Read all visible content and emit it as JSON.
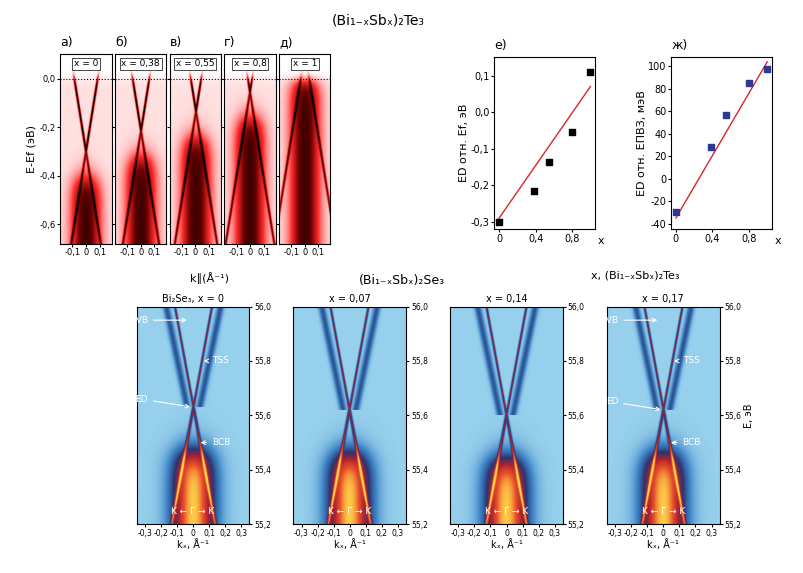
{
  "figure": {
    "title_top": "(Bi₁₋ₓSbₓ)₂Te₃",
    "title_bottom": "(Bi₁₋ₓSbₓ)₂Se₃",
    "top_xlabel": "k∥(Å⁻¹)",
    "top_ylabel": "E-Ef (эВ)",
    "scatter_xlabel": "x, (Bi₁₋ₓSbₓ)₂Te₃",
    "bottom_ylabel": "E, эВ"
  },
  "chart_data": [
    {
      "type": "image",
      "panel": "а)",
      "title": "x = 0",
      "dirac_point": -0.3,
      "fermi_level": 0,
      "xlim": [
        -0.19,
        0.19
      ],
      "xticks": [
        {
          "value": -0.1,
          "label": "-0,1"
        },
        0,
        {
          "value": 0.1,
          "label": "0,1"
        }
      ],
      "ylim": [
        -0.68,
        0.1
      ],
      "yticks": [
        {
          "value": 0,
          "label": "0,0"
        },
        {
          "value": -0.2,
          "label": "-0,2"
        },
        {
          "value": -0.4,
          "label": "-0,4"
        },
        {
          "value": -0.6,
          "label": "-0,6"
        }
      ]
    },
    {
      "type": "image",
      "panel": "б)",
      "title": "x = 0,38",
      "dirac_point": -0.215,
      "fermi_level": 0,
      "tick_labels": "x",
      "xlim": [
        -0.19,
        0.19
      ],
      "xticks": [
        {
          "value": -0.1,
          "label": "-0,1"
        },
        0,
        {
          "value": 0.1,
          "label": "0,1"
        }
      ],
      "ylim": [
        -0.68,
        0.1
      ],
      "yticks": [
        {
          "value": 0,
          "label": "0,0"
        },
        {
          "value": -0.2,
          "label": "-0,2"
        },
        {
          "value": -0.4,
          "label": "-0,4"
        },
        {
          "value": -0.6,
          "label": "-0,6"
        }
      ]
    },
    {
      "type": "image",
      "panel": "в)",
      "title": "x = 0,55",
      "dirac_point": -0.135,
      "fermi_level": 0,
      "tick_labels": "x",
      "xlim": [
        -0.19,
        0.19
      ],
      "xticks": [
        {
          "value": -0.1,
          "label": "-0,1"
        },
        0,
        {
          "value": 0.1,
          "label": "0,1"
        }
      ],
      "ylim": [
        -0.68,
        0.1
      ],
      "yticks": [
        {
          "value": 0,
          "label": "0,0"
        },
        {
          "value": -0.2,
          "label": "-0,2"
        },
        {
          "value": -0.4,
          "label": "-0,4"
        },
        {
          "value": -0.6,
          "label": "-0,6"
        }
      ]
    },
    {
      "type": "image",
      "panel": "г)",
      "title": "x = 0,8",
      "dirac_point": -0.055,
      "fermi_level": 0,
      "tick_labels": "x",
      "xlim": [
        -0.19,
        0.19
      ],
      "xticks": [
        {
          "value": -0.1,
          "label": "-0,1"
        },
        0,
        {
          "value": 0.1,
          "label": "0,1"
        }
      ],
      "ylim": [
        -0.68,
        0.1
      ],
      "yticks": [
        {
          "value": 0,
          "label": "0,0"
        },
        {
          "value": -0.2,
          "label": "-0,2"
        },
        {
          "value": -0.4,
          "label": "-0,4"
        },
        {
          "value": -0.6,
          "label": "-0,6"
        }
      ]
    },
    {
      "type": "image",
      "panel": "д)",
      "title": "x = 1",
      "dirac_point": 0.11,
      "fermi_level": 0,
      "tick_labels": "x",
      "xlim": [
        -0.19,
        0.19
      ],
      "xticks": [
        {
          "value": -0.1,
          "label": "-0,1"
        },
        0,
        {
          "value": 0.1,
          "label": "0,1"
        }
      ],
      "ylim": [
        -0.68,
        0.1
      ],
      "yticks": [
        {
          "value": 0,
          "label": "0,0"
        },
        {
          "value": -0.2,
          "label": "-0,2"
        },
        {
          "value": -0.4,
          "label": "-0,4"
        },
        {
          "value": -0.6,
          "label": "-0,6"
        }
      ]
    },
    {
      "type": "scatter",
      "panel": "е)",
      "x": [
        0,
        0.38,
        0.55,
        0.8,
        1
      ],
      "values": [
        -0.3,
        -0.215,
        -0.135,
        -0.055,
        0.11
      ],
      "color": "#000000",
      "marker": "square",
      "fit": {
        "x": [
          0,
          1
        ],
        "values": [
          -0.29,
          0.07
        ],
        "color": "#d62728"
      },
      "xlim": [
        -0.05,
        1.05
      ],
      "xticks": [
        0,
        {
          "value": 0.4,
          "label": "0,4"
        },
        {
          "value": 0.8,
          "label": "0,8"
        }
      ],
      "ylim": [
        -0.32,
        0.15
      ],
      "yticks": [
        {
          "value": -0.3,
          "label": "-0,3"
        },
        {
          "value": -0.2,
          "label": "-0,2"
        },
        {
          "value": -0.1,
          "label": "-0,1"
        },
        {
          "value": 0,
          "label": "0,0"
        },
        {
          "value": 0.1,
          "label": "0,1"
        }
      ],
      "ylabel": "ED отн. Ef, эВ",
      "x_end_label": "x"
    },
    {
      "type": "scatter",
      "panel": "ж)",
      "x": [
        0,
        0.38,
        0.55,
        0.8,
        1
      ],
      "values": [
        -30,
        28,
        57,
        85,
        98
      ],
      "color": "#2b3a8f",
      "marker": "square",
      "fit": {
        "x": [
          0,
          1
        ],
        "values": [
          -35,
          104
        ],
        "color": "#d62728"
      },
      "xlim": [
        -0.05,
        1.05
      ],
      "xticks": [
        0,
        {
          "value": 0.4,
          "label": "0,4"
        },
        {
          "value": 0.8,
          "label": "0,8"
        }
      ],
      "ylim": [
        -45,
        108
      ],
      "yticks": [
        -40,
        -20,
        0,
        20,
        40,
        60,
        80,
        100
      ],
      "ylabel": "ED отн. EПВЗ, мэВ",
      "x_end_label": "x"
    },
    {
      "type": "image",
      "title": "Bi₂Se₃, x = 0",
      "dirac_point": 55.63,
      "xlabel": "kₓ, Å⁻¹",
      "annotations": [
        "BVB",
        "TSS",
        "ED",
        "BCB"
      ],
      "direction_label": "K ← Γ → K",
      "xlim": [
        -0.35,
        0.35
      ],
      "xticks": [
        {
          "value": -0.3,
          "label": "-0,3"
        },
        {
          "value": -0.2,
          "label": "-0,2"
        },
        {
          "value": -0.1,
          "label": "-0,1"
        },
        0,
        {
          "value": 0.1,
          "label": "0,1"
        },
        {
          "value": 0.2,
          "label": "0,2"
        },
        {
          "value": 0.3,
          "label": "0,3"
        }
      ],
      "ylim": [
        55.2,
        56.0
      ],
      "yticks": [
        {
          "value": 55.2,
          "label": "55,2"
        },
        {
          "value": 55.4,
          "label": "55,4"
        },
        {
          "value": 55.6,
          "label": "55,6"
        },
        {
          "value": 55.8,
          "label": "55,8"
        },
        {
          "value": 56.0,
          "label": "56,0"
        }
      ]
    },
    {
      "type": "image",
      "title": "x = 0,07",
      "dirac_point": 55.62,
      "xlabel": "kₓ, Å⁻¹",
      "direction_label": "K ← Γ → K",
      "xlim": [
        -0.35,
        0.35
      ],
      "xticks": [
        {
          "value": -0.3,
          "label": "-0,3"
        },
        {
          "value": -0.2,
          "label": "-0,2"
        },
        {
          "value": -0.1,
          "label": "-0,1"
        },
        0,
        {
          "value": 0.1,
          "label": "0,1"
        },
        {
          "value": 0.2,
          "label": "0,2"
        },
        {
          "value": 0.3,
          "label": "0,3"
        }
      ],
      "ylim": [
        55.2,
        56.0
      ],
      "yticks": [
        {
          "value": 55.2,
          "label": "55,2"
        },
        {
          "value": 55.4,
          "label": "55,4"
        },
        {
          "value": 55.6,
          "label": "55,6"
        },
        {
          "value": 55.8,
          "label": "55,8"
        },
        {
          "value": 56.0,
          "label": "56,0"
        }
      ]
    },
    {
      "type": "image",
      "title": "x = 0,14",
      "dirac_point": 55.6,
      "xlabel": "kₓ, Å⁻¹",
      "direction_label": "K ← Γ → K",
      "xlim": [
        -0.35,
        0.35
      ],
      "xticks": [
        {
          "value": -0.3,
          "label": "-0,3"
        },
        {
          "value": -0.2,
          "label": "-0,2"
        },
        {
          "value": -0.1,
          "label": "-0,1"
        },
        0,
        {
          "value": 0.1,
          "label": "0,1"
        },
        {
          "value": 0.2,
          "label": "0,2"
        },
        {
          "value": 0.3,
          "label": "0,3"
        }
      ],
      "ylim": [
        55.2,
        56.0
      ],
      "yticks": [
        {
          "value": 55.2,
          "label": "55,2"
        },
        {
          "value": 55.4,
          "label": "55,4"
        },
        {
          "value": 55.6,
          "label": "55,6"
        },
        {
          "value": 55.8,
          "label": "55,8"
        },
        {
          "value": 56.0,
          "label": "56,0"
        }
      ]
    },
    {
      "type": "image",
      "title": "x = 0,17",
      "dirac_point": 55.62,
      "xlabel": "kₓ, Å⁻¹",
      "annotations": [
        "BVB",
        "TSS",
        "ED",
        "BCB"
      ],
      "direction_label": "K ← Γ → K",
      "xlim": [
        -0.35,
        0.35
      ],
      "xticks": [
        {
          "value": -0.3,
          "label": "-0,3"
        },
        {
          "value": -0.2,
          "label": "-0,2"
        },
        {
          "value": -0.1,
          "label": "-0,1"
        },
        0,
        {
          "value": 0.1,
          "label": "0,1"
        },
        {
          "value": 0.2,
          "label": "0,2"
        },
        {
          "value": 0.3,
          "label": "0,3"
        }
      ],
      "ylim": [
        55.2,
        56.0
      ],
      "yticks": [
        {
          "value": 55.2,
          "label": "55,2"
        },
        {
          "value": 55.4,
          "label": "55,4"
        },
        {
          "value": 55.6,
          "label": "55,6"
        },
        {
          "value": 55.8,
          "label": "55,8"
        },
        {
          "value": 56.0,
          "label": "56,0"
        }
      ]
    }
  ]
}
